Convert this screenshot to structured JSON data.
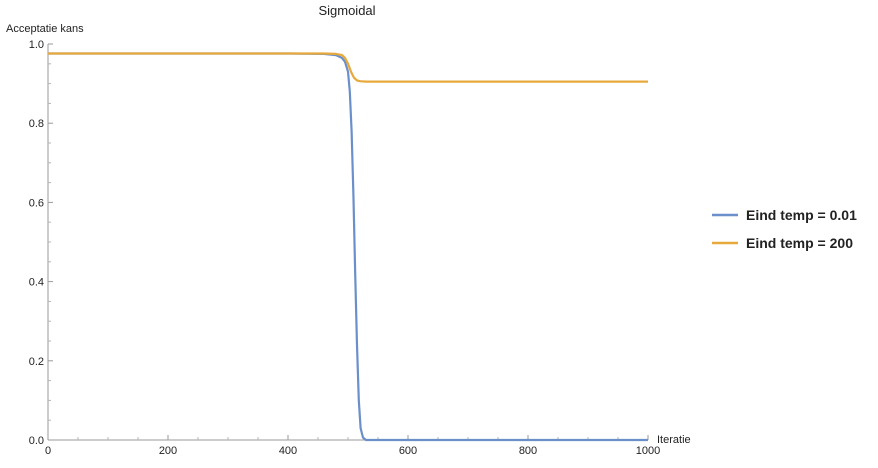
{
  "chart_data": {
    "type": "line",
    "title": "Sigmoidal",
    "xlabel": "Iteratie",
    "ylabel": "Acceptatie kans",
    "xlim": [
      0,
      1000
    ],
    "ylim": [
      0,
      1.0
    ],
    "x_ticks": [
      "0",
      "200",
      "400",
      "600",
      "800",
      "1000"
    ],
    "y_ticks": [
      "0.0",
      "0.2",
      "0.4",
      "0.6",
      "0.8",
      "1.0"
    ],
    "grid": false,
    "legend_position": "right",
    "series": [
      {
        "name": "Eind temp = 0.01",
        "color": "#6b8fcb",
        "x": [
          0,
          100,
          200,
          300,
          400,
          460,
          480,
          490,
          495,
          500,
          503,
          506,
          509,
          512,
          515,
          518,
          521,
          525,
          530,
          550,
          600,
          700,
          800,
          900,
          1000
        ],
        "y": [
          0.976,
          0.976,
          0.976,
          0.976,
          0.976,
          0.975,
          0.972,
          0.965,
          0.955,
          0.93,
          0.88,
          0.78,
          0.62,
          0.42,
          0.24,
          0.1,
          0.03,
          0.006,
          0.0,
          0.0,
          0.0,
          0.0,
          0.0,
          0.0,
          0.0
        ]
      },
      {
        "name": "Eind temp = 200",
        "color": "#e8a93c",
        "x": [
          0,
          100,
          200,
          300,
          400,
          460,
          480,
          490,
          495,
          500,
          505,
          510,
          515,
          520,
          530,
          550,
          600,
          700,
          800,
          900,
          1000
        ],
        "y": [
          0.976,
          0.976,
          0.976,
          0.976,
          0.976,
          0.976,
          0.975,
          0.972,
          0.965,
          0.95,
          0.93,
          0.915,
          0.908,
          0.906,
          0.905,
          0.905,
          0.905,
          0.905,
          0.905,
          0.905,
          0.905
        ]
      }
    ]
  }
}
